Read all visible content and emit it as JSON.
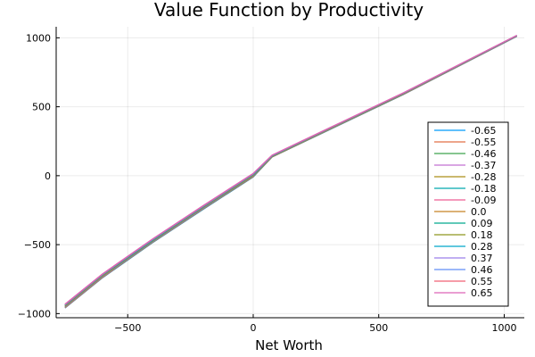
{
  "chart_data": {
    "type": "line",
    "title": "Value Function by Productivity",
    "xlabel": "Net Worth",
    "ylabel": "",
    "xlim": [
      -785,
      1080
    ],
    "ylim": [
      -1030,
      1080
    ],
    "x_ticks": [
      -500,
      0,
      500,
      1000
    ],
    "x_tick_labels": [
      "−500",
      "0",
      "500",
      "1000"
    ],
    "y_ticks": [
      -1000,
      -500,
      0,
      500,
      1000
    ],
    "y_tick_labels": [
      "−1000",
      "−500",
      "0",
      "500",
      "1000"
    ],
    "grid": true,
    "legend_position": "bottom-right",
    "x": [
      -750,
      -600,
      -400,
      -200,
      0,
      75,
      300,
      600,
      1050
    ],
    "series": [
      {
        "name": "-0.65",
        "color": "#009af9",
        "values": [
          -960,
          -740,
          -485,
          -245,
          -10,
          135,
          330,
          590,
          1010
        ]
      },
      {
        "name": "-0.55",
        "color": "#e26f46",
        "values": [
          -958,
          -738,
          -483,
          -243,
          -8,
          136,
          331,
          591,
          1011
        ]
      },
      {
        "name": "-0.46",
        "color": "#3ea44e",
        "values": [
          -955,
          -735,
          -481,
          -241,
          -6,
          137,
          332,
          592,
          1012
        ]
      },
      {
        "name": "-0.37",
        "color": "#c271d2",
        "values": [
          -953,
          -733,
          -479,
          -239,
          -4,
          138,
          333,
          593,
          1012
        ]
      },
      {
        "name": "-0.28",
        "color": "#ac8e18",
        "values": [
          -950,
          -730,
          -476,
          -236,
          -2,
          139,
          334,
          594,
          1013
        ]
      },
      {
        "name": "-0.18",
        "color": "#00a9ad",
        "values": [
          -948,
          -728,
          -474,
          -234,
          0,
          140,
          335,
          595,
          1014
        ]
      },
      {
        "name": "-0.09",
        "color": "#ed5e93",
        "values": [
          -946,
          -726,
          -472,
          -232,
          2,
          141,
          336,
          596,
          1014
        ]
      },
      {
        "name": "0.0",
        "color": "#c68225",
        "values": [
          -944,
          -724,
          -470,
          -230,
          4,
          142,
          337,
          597,
          1015
        ]
      },
      {
        "name": "0.09",
        "color": "#00a98d",
        "values": [
          -942,
          -722,
          -468,
          -228,
          6,
          143,
          338,
          598,
          1015
        ]
      },
      {
        "name": "0.18",
        "color": "#8e971e",
        "values": [
          -940,
          -720,
          -466,
          -226,
          8,
          144,
          339,
          599,
          1016
        ]
      },
      {
        "name": "0.28",
        "color": "#00a8cb",
        "values": [
          -938,
          -718,
          -464,
          -224,
          10,
          145,
          340,
          600,
          1016
        ]
      },
      {
        "name": "0.37",
        "color": "#9b7fe9",
        "values": [
          -936,
          -716,
          -462,
          -222,
          12,
          146,
          341,
          601,
          1017
        ]
      },
      {
        "name": "0.46",
        "color": "#618df6",
        "values": [
          -935,
          -715,
          -461,
          -221,
          13,
          147,
          342,
          601,
          1017
        ]
      },
      {
        "name": "0.55",
        "color": "#f06073",
        "values": [
          -933,
          -713,
          -459,
          -219,
          15,
          148,
          343,
          602,
          1018
        ]
      },
      {
        "name": "0.65",
        "color": "#dd65b6",
        "values": [
          -931,
          -711,
          -457,
          -217,
          17,
          149,
          344,
          603,
          1018
        ]
      }
    ]
  }
}
